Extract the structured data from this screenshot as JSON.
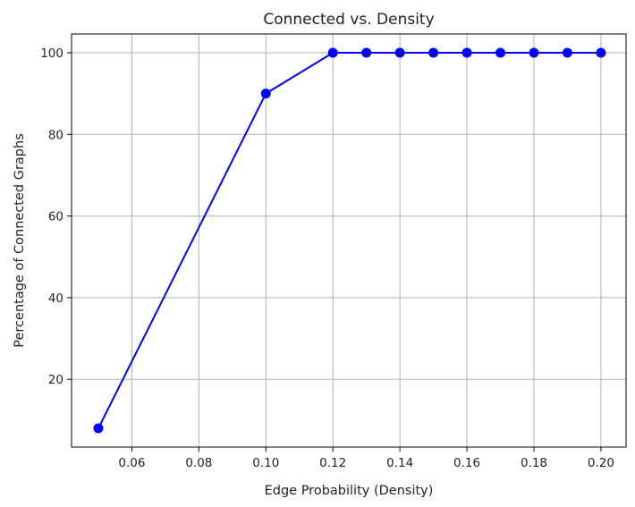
{
  "chart_data": {
    "type": "line",
    "title": "Connected vs. Density",
    "xlabel": "Edge Probability (Density)",
    "ylabel": "Percentage of Connected Graphs",
    "xlim": [
      0.042,
      0.2075
    ],
    "ylim": [
      3.4,
      104.6
    ],
    "xticks": [
      0.06,
      0.08,
      0.1,
      0.12,
      0.14,
      0.16,
      0.18,
      0.2
    ],
    "xtick_labels": [
      "0.06",
      "0.08",
      "0.10",
      "0.12",
      "0.14",
      "0.16",
      "0.18",
      "0.20"
    ],
    "yticks": [
      20,
      40,
      60,
      80,
      100
    ],
    "ytick_labels": [
      "20",
      "40",
      "60",
      "80",
      "100"
    ],
    "grid": true,
    "series": [
      {
        "color": "#0000ff",
        "marker": "circle",
        "x": [
          0.05,
          0.1,
          0.12,
          0.13,
          0.14,
          0.15,
          0.16,
          0.17,
          0.18,
          0.19,
          0.2
        ],
        "y": [
          8,
          90,
          100,
          100,
          100,
          100,
          100,
          100,
          100,
          100,
          100
        ]
      }
    ]
  }
}
